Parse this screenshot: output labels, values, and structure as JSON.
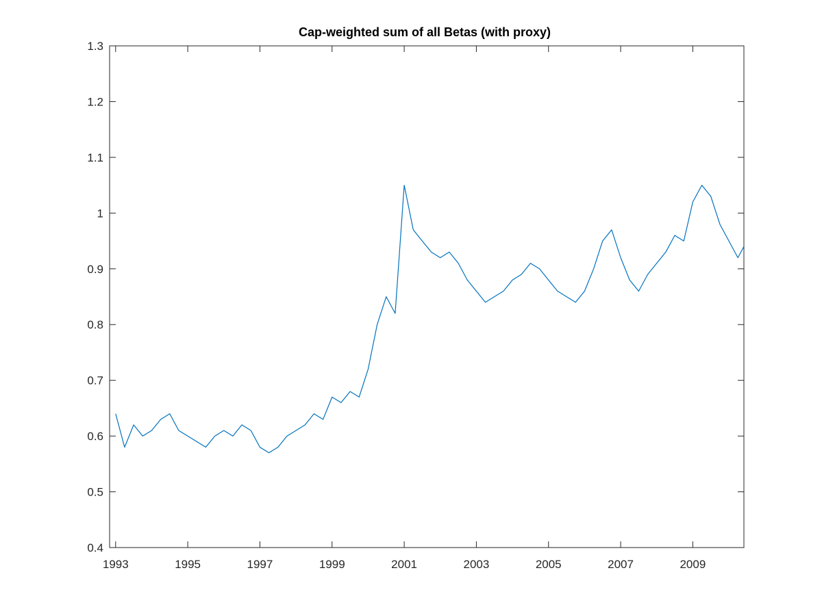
{
  "chart_data": {
    "type": "line",
    "title": "Cap-weighted sum of all Betas (with proxy)",
    "xlabel": "",
    "ylabel": "",
    "xlim": [
      "1992-11",
      "2010-06"
    ],
    "ylim": [
      0.4,
      1.3
    ],
    "x_ticks": [
      "1993",
      "1995",
      "1997",
      "1999",
      "2001",
      "2003",
      "2005",
      "2007",
      "2009"
    ],
    "y_ticks": [
      "0.4",
      "0.5",
      "0.6",
      "0.7",
      "0.8",
      "0.9",
      "1",
      "1.1",
      "1.2",
      "1.3"
    ],
    "grid": false,
    "legend": "none",
    "line_color": "#0072BD",
    "series": [
      {
        "x": [
          "1993-01",
          "1993-04",
          "1993-07",
          "1993-10",
          "1994-01",
          "1994-04",
          "1994-07",
          "1994-10",
          "1995-01",
          "1995-04",
          "1995-07",
          "1995-10",
          "1996-01",
          "1996-04",
          "1996-07",
          "1996-10",
          "1997-01",
          "1997-04",
          "1997-07",
          "1997-10",
          "1998-01",
          "1998-04",
          "1998-07",
          "1998-10",
          "1999-01",
          "1999-04",
          "1999-07",
          "1999-10",
          "2000-01",
          "2000-04",
          "2000-07",
          "2000-10",
          "2001-01",
          "2001-04",
          "2001-07",
          "2001-10",
          "2002-01",
          "2002-04",
          "2002-07",
          "2002-10",
          "2003-01",
          "2003-04",
          "2003-07",
          "2003-10",
          "2004-01",
          "2004-04",
          "2004-07",
          "2004-10",
          "2005-01",
          "2005-04",
          "2005-07",
          "2005-10",
          "2006-01",
          "2006-04",
          "2006-07",
          "2006-10",
          "2007-01",
          "2007-04",
          "2007-07",
          "2007-10",
          "2008-01",
          "2008-04",
          "2008-07",
          "2008-10",
          "2009-01",
          "2009-04",
          "2009-07",
          "2009-10",
          "2010-01",
          "2010-04",
          "2010-06"
        ],
        "values": [
          0.64,
          0.58,
          0.62,
          0.6,
          0.61,
          0.63,
          0.64,
          0.61,
          0.6,
          0.59,
          0.58,
          0.6,
          0.61,
          0.6,
          0.62,
          0.61,
          0.58,
          0.57,
          0.58,
          0.6,
          0.61,
          0.62,
          0.64,
          0.63,
          0.67,
          0.66,
          0.68,
          0.67,
          0.72,
          0.8,
          0.85,
          0.82,
          1.05,
          0.97,
          0.95,
          0.93,
          0.92,
          0.93,
          0.91,
          0.88,
          0.86,
          0.84,
          0.85,
          0.86,
          0.88,
          0.89,
          0.91,
          0.9,
          0.88,
          0.86,
          0.85,
          0.84,
          0.86,
          0.9,
          0.95,
          0.97,
          0.92,
          0.88,
          0.86,
          0.89,
          0.91,
          0.93,
          0.96,
          0.95,
          1.02,
          1.05,
          1.03,
          0.98,
          0.95,
          0.92,
          0.94
        ]
      }
    ]
  }
}
